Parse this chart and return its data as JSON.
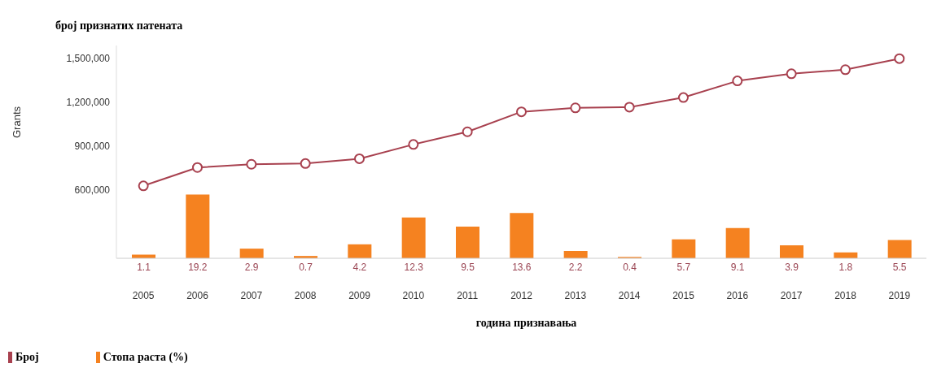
{
  "chart_data": {
    "type": "bar",
    "title": "број признатих патената",
    "ylabel": "Grants",
    "xlabel": "година признавања",
    "categories": [
      "2005",
      "2006",
      "2007",
      "2008",
      "2009",
      "2010",
      "2011",
      "2012",
      "2013",
      "2014",
      "2015",
      "2016",
      "2017",
      "2018",
      "2019"
    ],
    "series": [
      {
        "name": "Број",
        "type": "line",
        "color": "#a8414f",
        "values": [
          627000,
          753000,
          775000,
          780000,
          813000,
          911000,
          998000,
          1135000,
          1162000,
          1167000,
          1233000,
          1347000,
          1396000,
          1424000,
          1500000
        ]
      },
      {
        "name": "Стопа раста (%)",
        "axis": "y2",
        "color": "#f58220",
        "data_labels": true,
        "values": [
          1.1,
          19.2,
          2.9,
          0.7,
          4.2,
          12.3,
          9.5,
          13.6,
          2.2,
          0.4,
          5.7,
          9.1,
          3.9,
          1.8,
          5.5
        ]
      }
    ],
    "ylim": [
      130000,
      1590000
    ],
    "yticks": [
      {
        "value": 600000,
        "label": "600,000"
      },
      {
        "value": 900000,
        "label": "900,000"
      },
      {
        "value": 1200000,
        "label": "1,200,000"
      },
      {
        "value": 1500000,
        "label": "1,500,000"
      }
    ],
    "y2lim": [
      0,
      64
    ],
    "marker": "circle",
    "grid": false,
    "legend": "bottom left"
  }
}
